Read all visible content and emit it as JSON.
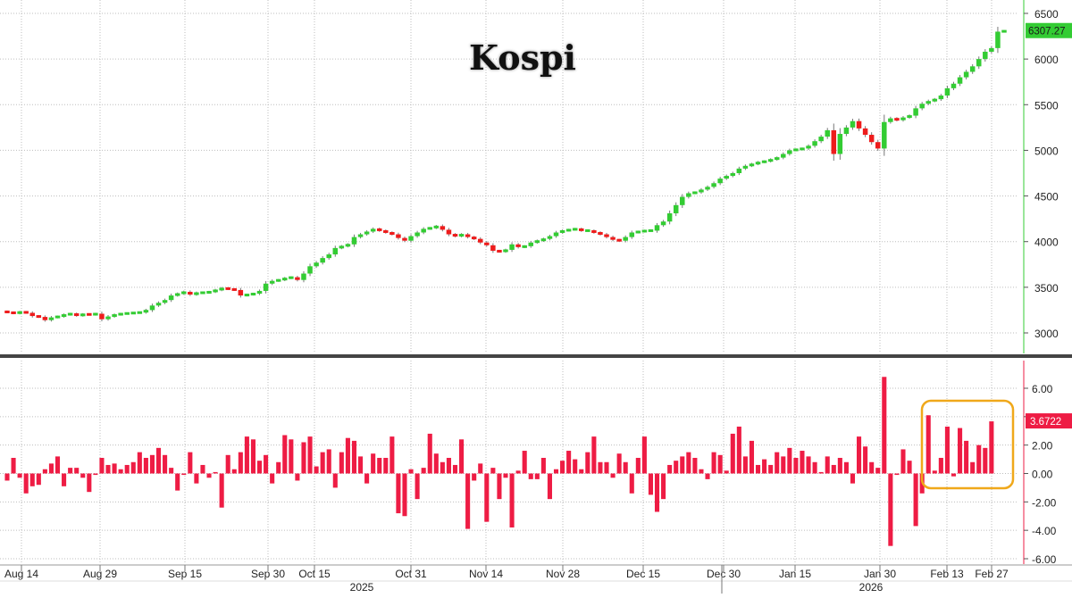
{
  "chart_data": [
    {
      "type": "candlestick",
      "title": "Kospi",
      "last_value_label": "6307.27",
      "y_ticks": [
        "6500",
        "6000",
        "5500",
        "5000",
        "4500",
        "4000",
        "3500",
        "3000"
      ],
      "ylim": [
        2750,
        6600
      ],
      "grid": true,
      "colors": {
        "up": "#33cc33",
        "down": "#ee1c1c",
        "last_label_bg": "#33cc33"
      },
      "close": [
        3225,
        3215,
        3230,
        3220,
        3185,
        3175,
        3140,
        3170,
        3180,
        3200,
        3210,
        3190,
        3205,
        3200,
        3210,
        3150,
        3180,
        3200,
        3210,
        3215,
        3220,
        3225,
        3250,
        3300,
        3330,
        3360,
        3410,
        3430,
        3450,
        3420,
        3440,
        3440,
        3450,
        3470,
        3490,
        3480,
        3470,
        3410,
        3420,
        3430,
        3460,
        3540,
        3570,
        3580,
        3600,
        3610,
        3580,
        3650,
        3730,
        3770,
        3820,
        3860,
        3930,
        3950,
        3970,
        4050,
        4080,
        4110,
        4140,
        4120,
        4100,
        4080,
        4040,
        4010,
        4060,
        4100,
        4140,
        4150,
        4170,
        4130,
        4080,
        4060,
        4080,
        4050,
        4030,
        3990,
        3960,
        3900,
        3890,
        3910,
        3970,
        3940,
        3950,
        3990,
        4010,
        4030,
        4060,
        4100,
        4120,
        4130,
        4140,
        4120,
        4120,
        4100,
        4080,
        4050,
        4020,
        4010,
        4050,
        4100,
        4110,
        4120,
        4120,
        4180,
        4220,
        4310,
        4400,
        4490,
        4530,
        4540,
        4570,
        4600,
        4640,
        4690,
        4720,
        4750,
        4800,
        4830,
        4850,
        4870,
        4880,
        4900,
        4920,
        4960,
        5000,
        5010,
        5020,
        5050,
        5100,
        5150,
        5220,
        4960,
        5180,
        5250,
        5320,
        5240,
        5170,
        5090,
        5020,
        5310,
        5350,
        5330,
        5360,
        5380,
        5460,
        5510,
        5540,
        5560,
        5600,
        5680,
        5730,
        5800,
        5860,
        5920,
        6000,
        6080,
        6120,
        6300,
        6307
      ]
    },
    {
      "type": "bar",
      "last_value_label": "3.6722",
      "y_ticks": [
        "6.00",
        "4.00",
        "2.00",
        "0.00",
        "-2.00",
        "-4.00",
        "-6.00"
      ],
      "ylim": [
        -6.4,
        7.8
      ],
      "grid": true,
      "colors": {
        "bar": "#ee1c44",
        "highlight_box": "#f0a81a"
      },
      "values": [
        -0.5,
        1.1,
        -0.3,
        -1.4,
        -0.9,
        -0.8,
        0.3,
        0.7,
        1.2,
        -0.9,
        0.4,
        0.4,
        -0.3,
        -1.3,
        -0.1,
        1.1,
        0.6,
        0.7,
        0.3,
        0.6,
        0.8,
        1.5,
        1.1,
        1.3,
        1.8,
        1.3,
        0.4,
        -1.2,
        -0.1,
        1.5,
        -0.7,
        0.6,
        -0.3,
        0.1,
        -2.4,
        1.3,
        0.3,
        1.5,
        2.6,
        2.4,
        0.9,
        1.3,
        -0.7,
        0.8,
        2.7,
        2.4,
        -0.5,
        2.2,
        2.6,
        0.5,
        1.5,
        1.7,
        -1.0,
        1.5,
        2.5,
        2.3,
        1.2,
        -0.7,
        1.4,
        1.1,
        1.1,
        2.6,
        -2.8,
        -3.0,
        0.3,
        -1.8,
        0.4,
        2.8,
        1.4,
        0.8,
        1.1,
        0.6,
        2.4,
        -3.9,
        -0.5,
        0.7,
        -3.4,
        0.4,
        -1.8,
        -0.3,
        -3.8,
        0.2,
        1.6,
        -0.4,
        -0.4,
        1.1,
        -1.8,
        0.3,
        0.9,
        1.6,
        1.0,
        0.3,
        1.5,
        2.6,
        0.8,
        0.8,
        -0.3,
        1.4,
        0.8,
        -1.4,
        1.1,
        2.6,
        -1.5,
        -2.7,
        -1.8,
        0.6,
        0.9,
        1.2,
        1.5,
        1.1,
        0.3,
        -0.4,
        1.5,
        1.3,
        0.2,
        2.8,
        3.3,
        1.2,
        2.3,
        0.6,
        1.0,
        0.6,
        1.5,
        1.2,
        1.8,
        1.1,
        1.6,
        1.2,
        0.8,
        0.1,
        1.2,
        0.6,
        1.1,
        0.8,
        -0.7,
        2.6,
        1.9,
        0.8,
        0.4,
        6.8,
        -5.1,
        -0.1,
        1.7,
        0.9,
        -3.7,
        -1.4,
        4.1,
        0.2,
        1.1,
        3.3,
        -0.2,
        3.2,
        2.3,
        0.8,
        2.0,
        1.8,
        3.67
      ]
    }
  ],
  "x_axis": {
    "labels": [
      "Aug 14",
      "Aug 29",
      "Sep 15",
      "Sep 30",
      "Oct 15",
      "Oct 31",
      "Nov 14",
      "Nov 28",
      "Dec 15",
      "Dec 30",
      "Jan 15",
      "Jan 30",
      "Feb 13",
      "Feb 27"
    ],
    "years": [
      "2025",
      "2026"
    ]
  }
}
